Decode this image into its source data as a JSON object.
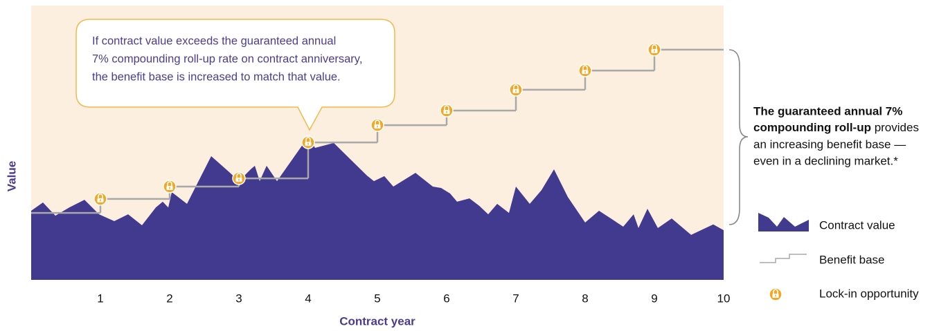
{
  "chart_data": {
    "type": "area",
    "callout": [
      "If contract value exceeds the guaranteed annual",
      "7% compounding roll-up rate on contract anniversary,",
      "the benefit base is increased to match that value."
    ],
    "annotation": {
      "bold": [
        "The guaranteed annual 7%",
        "compounding roll-up"
      ],
      "text": [
        " provides",
        "an increasing benefit base —",
        "even in a declining market.*"
      ]
    },
    "xlabel": "Contract year",
    "ylabel": "Value",
    "xlim": [
      0,
      10
    ],
    "ylim": [
      0,
      100
    ],
    "xticks": [
      1,
      2,
      3,
      4,
      5,
      6,
      7,
      8,
      9,
      10
    ],
    "series": [
      {
        "name": "Contract value",
        "color": "#413a8e",
        "x": [
          0,
          0.17,
          0.35,
          0.55,
          0.77,
          0.98,
          1.2,
          1.4,
          1.6,
          1.8,
          1.9,
          1.98,
          2.03,
          2.25,
          2.6,
          2.85,
          3.0,
          3.17,
          3.23,
          3.3,
          3.4,
          3.55,
          4.0,
          4.1,
          4.37,
          4.85,
          4.95,
          5.1,
          5.23,
          5.55,
          5.8,
          5.92,
          6.05,
          6.15,
          6.33,
          6.47,
          6.6,
          6.73,
          6.9,
          7.0,
          7.2,
          7.37,
          7.55,
          7.75,
          8.0,
          8.2,
          8.4,
          8.55,
          8.7,
          8.77,
          8.9,
          9.05,
          9.25,
          9.53,
          9.85,
          10
        ],
        "values": [
          25.2,
          28.2,
          23.4,
          26.4,
          29.2,
          23.9,
          21.4,
          23.9,
          19.9,
          26.4,
          28.5,
          26.4,
          32.0,
          27.7,
          45.1,
          39.5,
          36.0,
          40.3,
          41.6,
          36.0,
          41.6,
          36.0,
          52.1,
          48.1,
          49.9,
          38.0,
          36.0,
          37.8,
          34.0,
          39.0,
          34.0,
          33.5,
          31.5,
          28.5,
          29.7,
          27.0,
          23.9,
          27.7,
          24.4,
          34.0,
          27.7,
          32.7,
          40.3,
          30.2,
          20.9,
          25.2,
          21.9,
          19.4,
          23.9,
          18.9,
          25.9,
          18.9,
          22.4,
          16.4,
          20.2,
          18.1
        ]
      },
      {
        "name": "Benefit base",
        "color": "#a8a8a8",
        "x": [
          0,
          1,
          2,
          3,
          4,
          5,
          6,
          7,
          8,
          9
        ],
        "values": [
          24.4,
          29.5,
          34.0,
          37.0,
          50.1,
          56.4,
          61.7,
          69.3,
          76.3,
          83.9
        ]
      }
    ],
    "markers": {
      "name": "Lock-in opportunity",
      "color": "#f5a623"
    }
  }
}
